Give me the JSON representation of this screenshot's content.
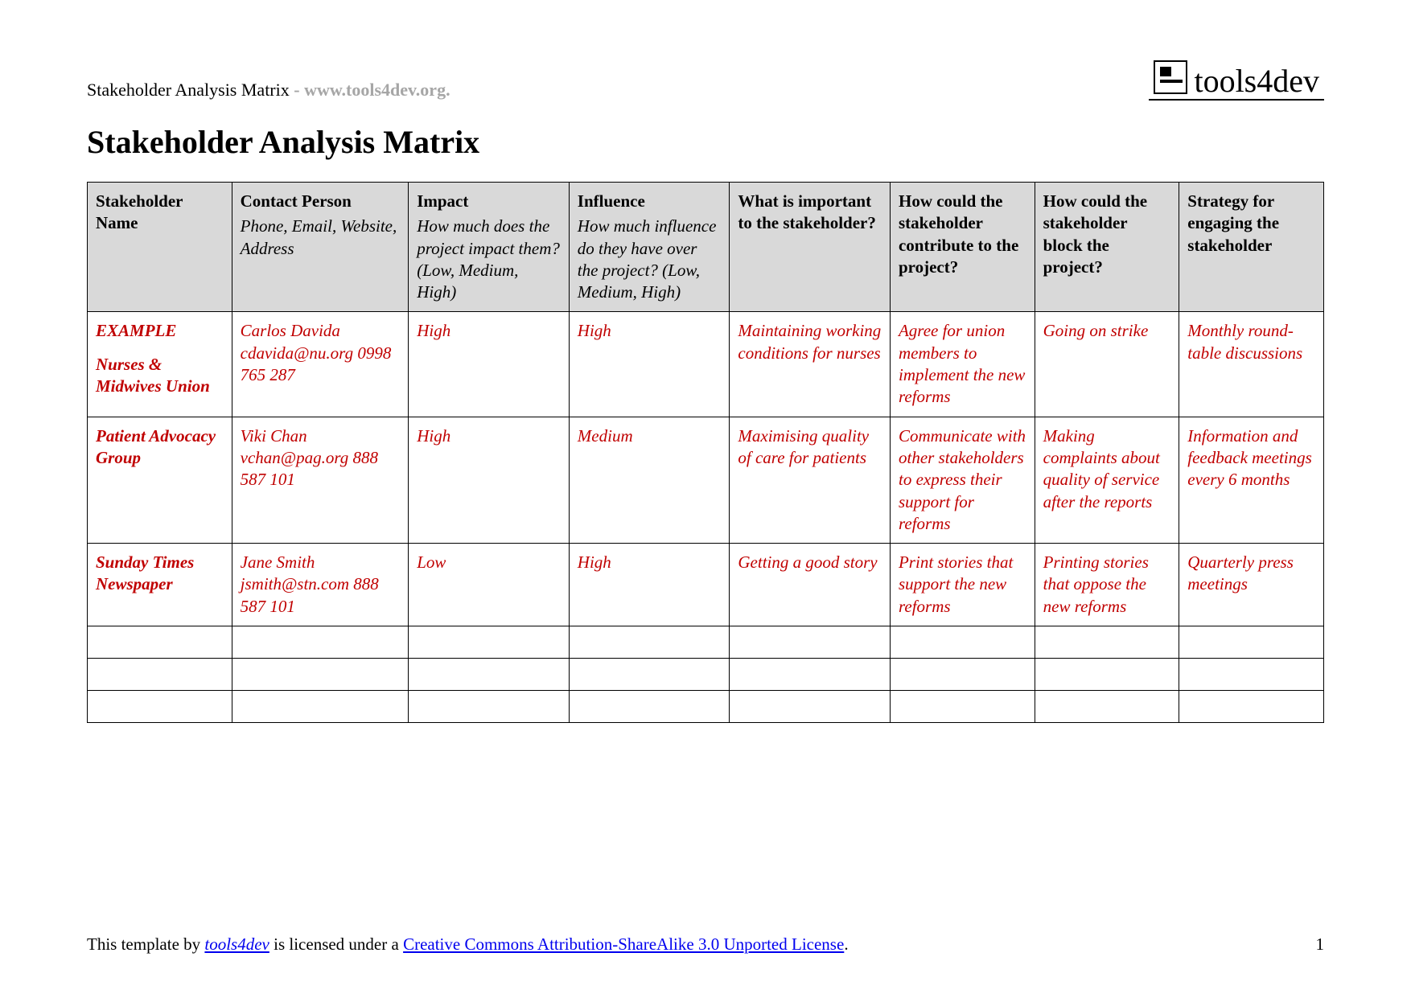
{
  "header": {
    "title_small": "Stakeholder Analysis Matrix",
    "url_text": "- www.tools4dev.org.",
    "logo_text": "tools4dev"
  },
  "title": "Stakeholder Analysis Matrix",
  "columns": [
    {
      "label": "Stakeholder Name",
      "sub": ""
    },
    {
      "label": "Contact Person",
      "sub": "Phone, Email, Website, Address"
    },
    {
      "label": "Impact",
      "sub": "How much does the project impact them? (Low, Medium, High)"
    },
    {
      "label": "Influence",
      "sub": "How much influence do they have over the project? (Low, Medium, High)"
    },
    {
      "label": "What is important to the stakeholder?",
      "sub": ""
    },
    {
      "label": "How could the stakeholder contribute to the project?",
      "sub": ""
    },
    {
      "label": "How could the stakeholder block the project?",
      "sub": ""
    },
    {
      "label": "Strategy for engaging the stakeholder",
      "sub": ""
    }
  ],
  "col_widths": [
    "9%",
    "11%",
    "10%",
    "10%",
    "10%",
    "9%",
    "9%",
    "9%"
  ],
  "rows": [
    {
      "example": "EXAMPLE",
      "name": "Nurses & Midwives Union",
      "contact": "Carlos Davida cdavida@nu.org 0998 765 287",
      "impact": "High",
      "influence": "High",
      "important": "Maintaining working conditions for nurses",
      "contribute": "Agree for union members to implement the new reforms",
      "block": "Going on strike",
      "strategy": "Monthly round-table discussions"
    },
    {
      "example": "",
      "name": "Patient Advocacy Group",
      "contact": "Viki Chan vchan@pag.org 888 587 101",
      "impact": "High",
      "influence": "Medium",
      "important": "Maximising quality of care for patients",
      "contribute": "Communicate with other stakeholders to express their support for reforms",
      "block": "Making complaints about quality of service after the reports",
      "strategy": "Information and feedback meetings every 6 months"
    },
    {
      "example": "",
      "name": "Sunday Times Newspaper",
      "contact": "Jane Smith jsmith@stn.com 888 587 101",
      "impact": "Low",
      "influence": "High",
      "important": "Getting a good story",
      "contribute": "Print stories that support the new reforms",
      "block": "Printing stories that oppose the new reforms",
      "strategy": "Quarterly press meetings"
    }
  ],
  "empty_rows": 3,
  "footer": {
    "prefix": "This template by ",
    "link1_text": "tools4dev",
    "mid": " is licensed under a ",
    "link2_text": "Creative Commons Attribution-ShareAlike 3.0 Unported License",
    "suffix": ".",
    "page_num": "1"
  },
  "colors": {
    "accent_red": "#c00000",
    "header_bg": "#d9d9d9",
    "url_gray": "#a6a6a6",
    "link_blue": "#0000ee"
  }
}
